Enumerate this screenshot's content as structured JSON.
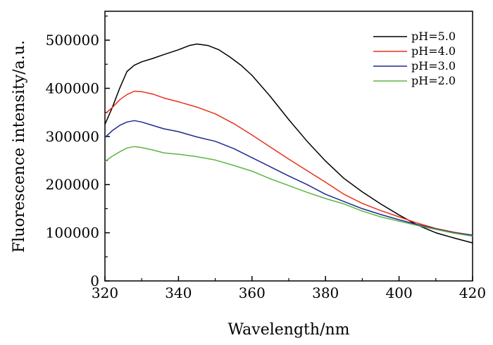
{
  "chart_data": {
    "type": "line",
    "title": "",
    "xlabel": "Wavelength/nm",
    "ylabel": "Fluorescence intensity/a.u.",
    "xlim": [
      320,
      420
    ],
    "ylim": [
      0,
      560000
    ],
    "x_ticks": [
      320,
      340,
      360,
      380,
      400,
      420
    ],
    "y_ticks": [
      0,
      100000,
      200000,
      300000,
      400000,
      500000
    ],
    "x_tick_labels": [
      "320",
      "340",
      "360",
      "380",
      "400",
      "420"
    ],
    "y_tick_labels": [
      "0",
      "100000",
      "200000",
      "300000",
      "400000",
      "500000"
    ],
    "grid": false,
    "legend_position": "top-right",
    "series": [
      {
        "name": "pH=5.0",
        "color": "#000000",
        "points": [
          [
            320,
            325000
          ],
          [
            322,
            360000
          ],
          [
            324,
            400000
          ],
          [
            326,
            435000
          ],
          [
            328,
            448000
          ],
          [
            330,
            455000
          ],
          [
            333,
            462000
          ],
          [
            336,
            470000
          ],
          [
            340,
            480000
          ],
          [
            343,
            489000
          ],
          [
            345,
            492000
          ],
          [
            348,
            489000
          ],
          [
            351,
            480000
          ],
          [
            354,
            465000
          ],
          [
            357,
            448000
          ],
          [
            360,
            427000
          ],
          [
            365,
            383000
          ],
          [
            370,
            335000
          ],
          [
            375,
            290000
          ],
          [
            380,
            249000
          ],
          [
            385,
            213000
          ],
          [
            390,
            185000
          ],
          [
            395,
            160000
          ],
          [
            400,
            137000
          ],
          [
            405,
            116000
          ],
          [
            410,
            100000
          ],
          [
            415,
            89000
          ],
          [
            420,
            79000
          ]
        ]
      },
      {
        "name": "pH=4.0",
        "color": "#e8311a",
        "points": [
          [
            320,
            347000
          ],
          [
            322,
            360000
          ],
          [
            324,
            376000
          ],
          [
            326,
            387000
          ],
          [
            328,
            394000
          ],
          [
            330,
            393000
          ],
          [
            333,
            388000
          ],
          [
            336,
            380000
          ],
          [
            340,
            372000
          ],
          [
            345,
            361000
          ],
          [
            350,
            347000
          ],
          [
            355,
            327000
          ],
          [
            360,
            303000
          ],
          [
            365,
            278000
          ],
          [
            370,
            253000
          ],
          [
            375,
            229000
          ],
          [
            380,
            205000
          ],
          [
            385,
            180000
          ],
          [
            390,
            161000
          ],
          [
            395,
            146000
          ],
          [
            400,
            133000
          ],
          [
            405,
            120000
          ],
          [
            410,
            109000
          ],
          [
            415,
            101000
          ],
          [
            420,
            95000
          ]
        ]
      },
      {
        "name": "pH=3.0",
        "color": "#1f2a8f",
        "points": [
          [
            320,
            298000
          ],
          [
            322,
            312000
          ],
          [
            324,
            323000
          ],
          [
            326,
            330000
          ],
          [
            328,
            333000
          ],
          [
            330,
            330000
          ],
          [
            333,
            323000
          ],
          [
            336,
            316000
          ],
          [
            340,
            310000
          ],
          [
            345,
            299000
          ],
          [
            350,
            290000
          ],
          [
            355,
            275000
          ],
          [
            360,
            256000
          ],
          [
            365,
            237000
          ],
          [
            370,
            218000
          ],
          [
            375,
            200000
          ],
          [
            380,
            180000
          ],
          [
            385,
            165000
          ],
          [
            390,
            150000
          ],
          [
            395,
            138000
          ],
          [
            400,
            127000
          ],
          [
            405,
            117000
          ],
          [
            410,
            108000
          ],
          [
            415,
            100000
          ],
          [
            420,
            95000
          ]
        ]
      },
      {
        "name": "pH=2.0",
        "color": "#5cb544",
        "points": [
          [
            320,
            248000
          ],
          [
            322,
            259000
          ],
          [
            324,
            268000
          ],
          [
            326,
            276000
          ],
          [
            328,
            279000
          ],
          [
            330,
            277000
          ],
          [
            333,
            272000
          ],
          [
            336,
            266000
          ],
          [
            340,
            263000
          ],
          [
            345,
            258000
          ],
          [
            350,
            251000
          ],
          [
            355,
            240000
          ],
          [
            360,
            228000
          ],
          [
            365,
            212000
          ],
          [
            370,
            198000
          ],
          [
            375,
            184000
          ],
          [
            380,
            171000
          ],
          [
            385,
            160000
          ],
          [
            390,
            145000
          ],
          [
            395,
            133000
          ],
          [
            400,
            124000
          ],
          [
            405,
            115000
          ],
          [
            410,
            107000
          ],
          [
            415,
            99000
          ],
          [
            420,
            93000
          ]
        ]
      }
    ]
  }
}
